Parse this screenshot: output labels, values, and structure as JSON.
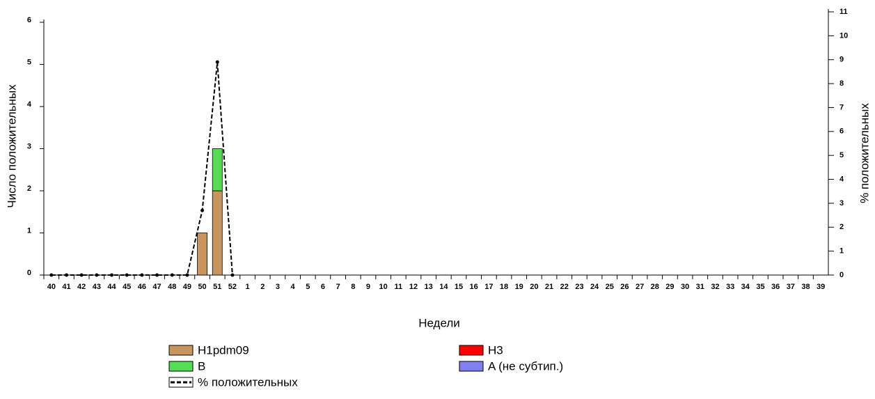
{
  "chart_data": {
    "type": "bar",
    "xlabel": "Недели",
    "ylabel": "Число положительных",
    "y2label": "% положительных",
    "categories": [
      "40",
      "41",
      "42",
      "43",
      "44",
      "45",
      "46",
      "47",
      "48",
      "49",
      "50",
      "51",
      "52",
      "1",
      "2",
      "3",
      "4",
      "5",
      "6",
      "7",
      "8",
      "9",
      "10",
      "11",
      "12",
      "13",
      "14",
      "15",
      "16",
      "17",
      "18",
      "19",
      "20",
      "21",
      "22",
      "23",
      "24",
      "25",
      "26",
      "27",
      "28",
      "29",
      "30",
      "31",
      "32",
      "33",
      "34",
      "35",
      "36",
      "37",
      "38",
      "39"
    ],
    "ylim": [
      0,
      6
    ],
    "yticks": [
      0,
      1,
      2,
      3,
      4,
      5,
      6
    ],
    "y2lim": [
      0,
      11
    ],
    "y2ticks": [
      0,
      1,
      2,
      3,
      4,
      5,
      6,
      7,
      8,
      9,
      10,
      11
    ],
    "stacked": true,
    "series": [
      {
        "name": "H1pdm09",
        "color": "#c8955e",
        "values": [
          0,
          0,
          0,
          0,
          0,
          0,
          0,
          0,
          0,
          0,
          1,
          2,
          0,
          0,
          0,
          0,
          0,
          0,
          0,
          0,
          0,
          0,
          0,
          0,
          0,
          0,
          0,
          0,
          0,
          0,
          0,
          0,
          0,
          0,
          0,
          0,
          0,
          0,
          0,
          0,
          0,
          0,
          0,
          0,
          0,
          0,
          0,
          0,
          0,
          0,
          0,
          0
        ]
      },
      {
        "name": "B",
        "color": "#55dd55",
        "values": [
          0,
          0,
          0,
          0,
          0,
          0,
          0,
          0,
          0,
          0,
          0,
          1,
          0,
          0,
          0,
          0,
          0,
          0,
          0,
          0,
          0,
          0,
          0,
          0,
          0,
          0,
          0,
          0,
          0,
          0,
          0,
          0,
          0,
          0,
          0,
          0,
          0,
          0,
          0,
          0,
          0,
          0,
          0,
          0,
          0,
          0,
          0,
          0,
          0,
          0,
          0,
          0
        ]
      },
      {
        "name": "H3",
        "color": "#ff0000",
        "values": [
          0,
          0,
          0,
          0,
          0,
          0,
          0,
          0,
          0,
          0,
          0,
          0,
          0,
          0,
          0,
          0,
          0,
          0,
          0,
          0,
          0,
          0,
          0,
          0,
          0,
          0,
          0,
          0,
          0,
          0,
          0,
          0,
          0,
          0,
          0,
          0,
          0,
          0,
          0,
          0,
          0,
          0,
          0,
          0,
          0,
          0,
          0,
          0,
          0,
          0,
          0,
          0
        ]
      },
      {
        "name": "A (не субтип.)",
        "color": "#8080f0",
        "values": [
          0,
          0,
          0,
          0,
          0,
          0,
          0,
          0,
          0,
          0,
          0,
          0,
          0,
          0,
          0,
          0,
          0,
          0,
          0,
          0,
          0,
          0,
          0,
          0,
          0,
          0,
          0,
          0,
          0,
          0,
          0,
          0,
          0,
          0,
          0,
          0,
          0,
          0,
          0,
          0,
          0,
          0,
          0,
          0,
          0,
          0,
          0,
          0,
          0,
          0,
          0,
          0
        ]
      },
      {
        "name": "% положительных",
        "type": "line",
        "axis": "y2",
        "color": "#000000",
        "dashed": true,
        "values": [
          0,
          0,
          0,
          0,
          0,
          0,
          0,
          0,
          0,
          0,
          2.7,
          8.9,
          0,
          null,
          null,
          null,
          null,
          null,
          null,
          null,
          null,
          null,
          null,
          null,
          null,
          null,
          null,
          null,
          null,
          null,
          null,
          null,
          null,
          null,
          null,
          null,
          null,
          null,
          null,
          null,
          null,
          null,
          null,
          null,
          null,
          null,
          null,
          null,
          null,
          null,
          null,
          null
        ]
      }
    ]
  }
}
